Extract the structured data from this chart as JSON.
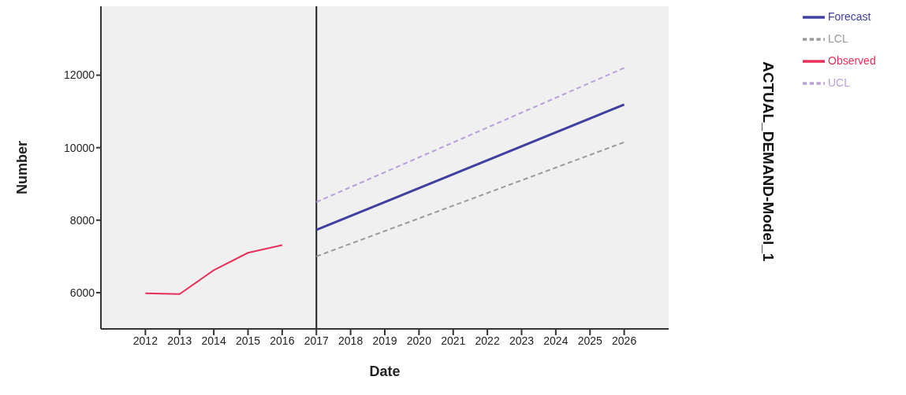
{
  "chart_data": {
    "type": "line",
    "title": "ACTUAL_DEMAND-Model_1",
    "xlabel": "Date",
    "ylabel": "Number",
    "xlim": [
      2010.7,
      2027.3
    ],
    "xticks": [
      2012,
      2013,
      2014,
      2015,
      2016,
      2017,
      2018,
      2019,
      2020,
      2021,
      2022,
      2023,
      2024,
      2025,
      2026
    ],
    "ylim": [
      5000,
      13900
    ],
    "yticks": [
      6000,
      8000,
      10000,
      12000
    ],
    "series": [
      {
        "name": "Observed",
        "color": "#e8305a",
        "line_style": "solid",
        "x": [
          2012,
          2013,
          2014,
          2015,
          2016
        ],
        "values": [
          5980,
          5960,
          6620,
          7100,
          7310
        ]
      },
      {
        "name": "Forecast",
        "color": "#4040a0",
        "line_style": "solid",
        "x": [
          2017,
          2026
        ],
        "values": [
          7730,
          11190
        ]
      },
      {
        "name": "UCL",
        "color": "#b8a0d8",
        "line_style": "dashed",
        "x": [
          2017,
          2026
        ],
        "values": [
          8500,
          12200
        ]
      },
      {
        "name": "LCL",
        "color": "#9a9a9a",
        "line_style": "dashed",
        "x": [
          2017,
          2026
        ],
        "values": [
          7000,
          10150
        ]
      }
    ],
    "ref_lines": [
      {
        "axis": "x",
        "value": 2017,
        "color": "#202020"
      }
    ],
    "grid": false,
    "legend": "top right",
    "marker": "none"
  }
}
